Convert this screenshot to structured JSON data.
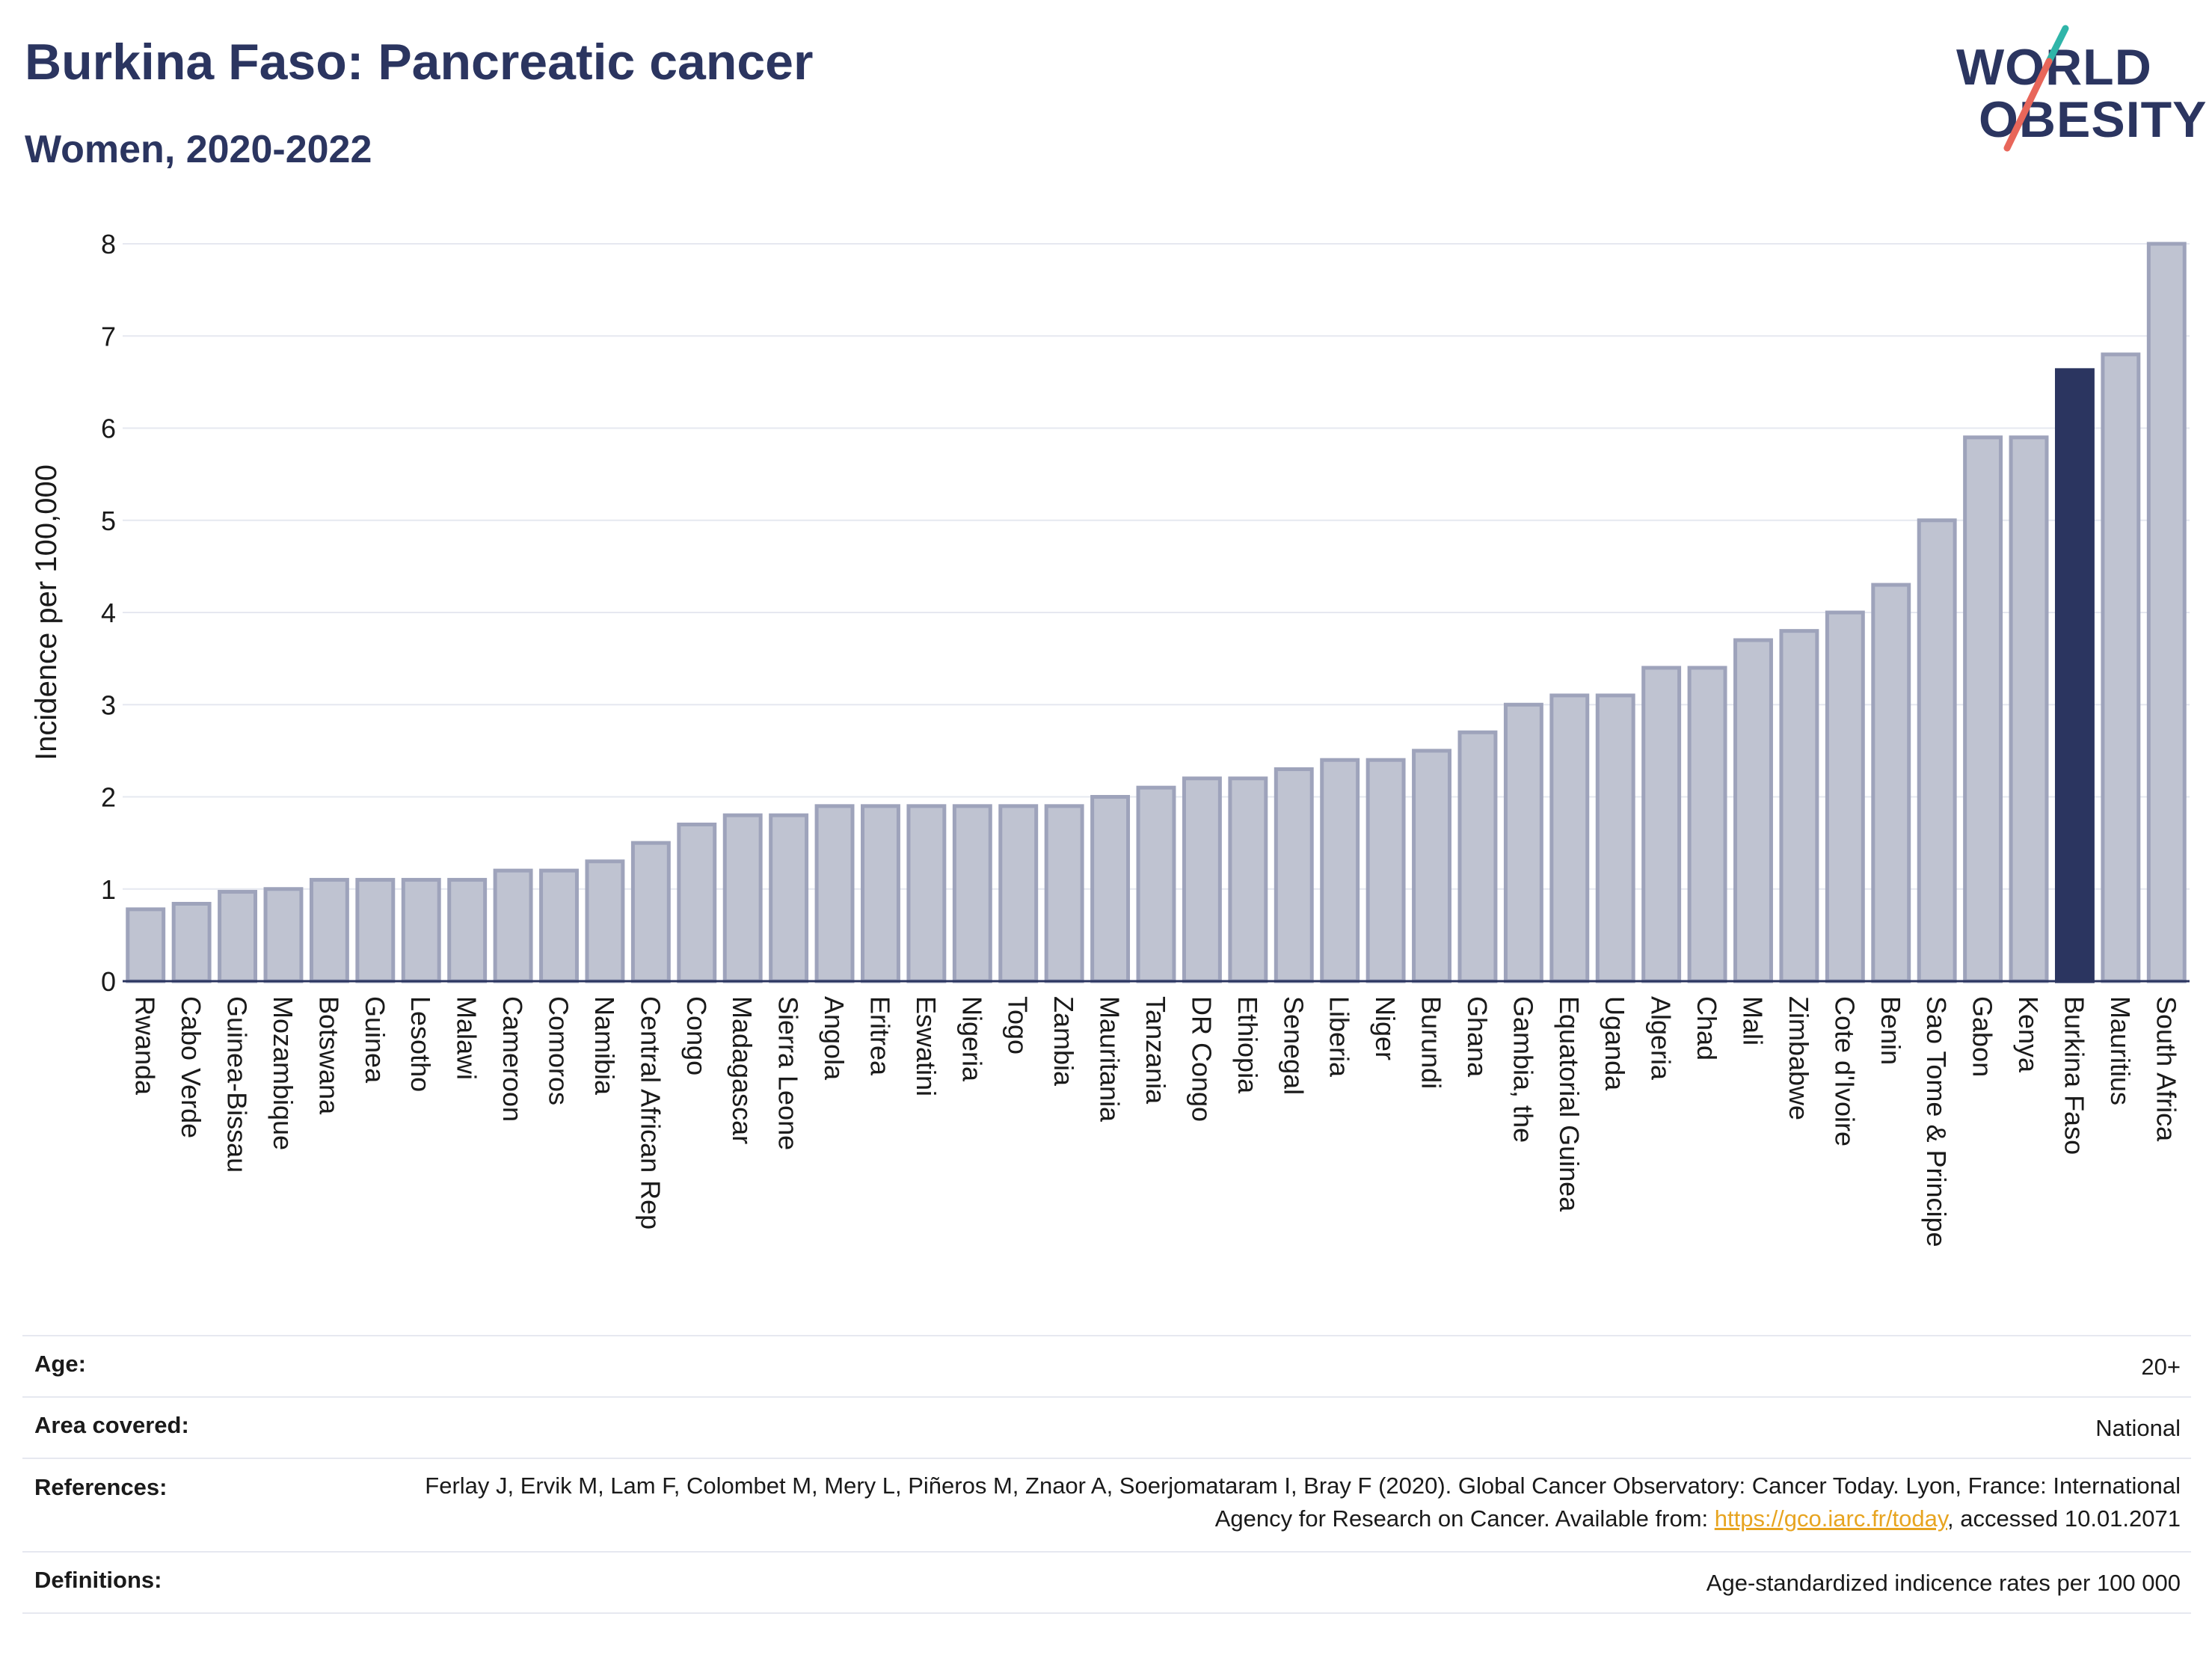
{
  "header": {
    "title": "Burkina Faso: Pancreatic cancer",
    "subtitle": "Women, 2020-2022"
  },
  "logo": {
    "line1": "WORLD",
    "line2": "OBESITY",
    "slash_colors": [
      "#2fb5a9",
      "#e8665a"
    ]
  },
  "colors": {
    "bar": "#bfc3d1",
    "bar_stroke": "#9ea3bb",
    "highlight": "#2b3560",
    "grid": "#e6e8f0",
    "axis": "#2b3560"
  },
  "chart_data": {
    "type": "bar",
    "title": "",
    "xlabel": "",
    "ylabel": "Incidence per 100,000",
    "ylim": [
      0,
      8
    ],
    "yticks": [
      0,
      1,
      2,
      3,
      4,
      5,
      6,
      7,
      8
    ],
    "grid": true,
    "highlight_category": "Burkina Faso",
    "categories": [
      "Rwanda",
      "Cabo Verde",
      "Guinea-Bissau",
      "Mozambique",
      "Botswana",
      "Guinea",
      "Lesotho",
      "Malawi",
      "Cameroon",
      "Comoros",
      "Namibia",
      "Central African Rep",
      "Congo",
      "Madagascar",
      "Sierra Leone",
      "Angola",
      "Eritrea",
      "Eswatini",
      "Nigeria",
      "Togo",
      "Zambia",
      "Mauritania",
      "Tanzania",
      "DR Congo",
      "Ethiopia",
      "Senegal",
      "Liberia",
      "Niger",
      "Burundi",
      "Ghana",
      "Gambia, the",
      "Equatorial Guinea",
      "Uganda",
      "Algeria",
      "Chad",
      "Mali",
      "Zimbabwe",
      "Cote d'Ivoire",
      "Benin",
      "Sao Tome & Principe",
      "Gabon",
      "Kenya",
      "Burkina Faso",
      "Mauritius",
      "South Africa"
    ],
    "values": [
      0.78,
      0.84,
      0.97,
      1.0,
      1.1,
      1.1,
      1.1,
      1.1,
      1.2,
      1.2,
      1.3,
      1.5,
      1.7,
      1.8,
      1.8,
      1.9,
      1.9,
      1.9,
      1.9,
      1.9,
      1.9,
      2.0,
      2.1,
      2.2,
      2.2,
      2.3,
      2.4,
      2.4,
      2.5,
      2.7,
      3.0,
      3.1,
      3.1,
      3.4,
      3.4,
      3.7,
      3.8,
      4.0,
      4.3,
      5.0,
      5.9,
      5.9,
      6.63,
      6.8,
      8.0
    ]
  },
  "info": {
    "age_label": "Age:",
    "age_value": "20+",
    "area_label": "Area covered:",
    "area_value": "National",
    "references_label": "References:",
    "references_text_1": "Ferlay J, Ervik M, Lam F, Colombet M, Mery L, Piñeros M, Znaor A, Soerjomataram I, Bray F (2020). Global Cancer Observatory: Cancer Today. Lyon, France: International Agency for Research on Cancer. Available from: ",
    "references_link": "https://gco.iarc.fr/today",
    "references_text_2": ", accessed 10.01.2071",
    "definitions_label": "Definitions:",
    "definitions_value": "Age-standardized indicence rates per 100 000"
  }
}
